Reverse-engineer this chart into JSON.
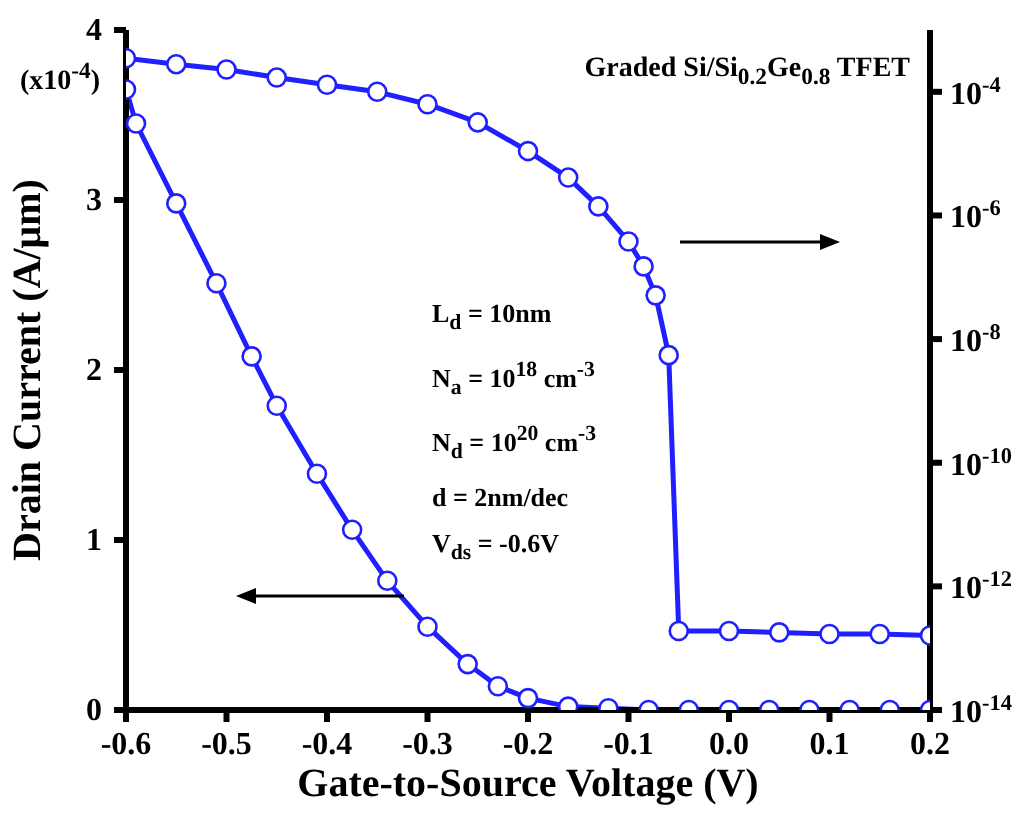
{
  "chart_data": {
    "type": "line",
    "title": "Graded Si/Si$_{0.2}$Ge$_{0.8}$ TFET",
    "xlabel": "Gate-to-Source Voltage (V)",
    "ylabel": "Drain Current (A/μm)",
    "annotations": [
      "(x10$^{-4}$)",
      "L$_{d}$ = 10nm",
      "N$_{a}$ = 10$^{18}$ cm$^{-3}$",
      "N$_{d}$ = 10$^{20}$ cm$^{-3}$",
      "d = 2nm/dec",
      "V$_{ds}$ = -0.6V"
    ],
    "series": [
      {
        "color": "#1f1fff",
        "axis": "y",
        "x": [
          -0.6,
          -0.59,
          -0.55,
          -0.51,
          -0.475,
          -0.45,
          -0.41,
          -0.375,
          -0.34,
          -0.3,
          -0.26,
          -0.23,
          -0.2,
          -0.16,
          -0.12,
          -0.08,
          -0.04,
          0,
          0.04,
          0.08,
          0.12,
          0.16,
          0.2
        ],
        "values": [
          3.65,
          3.45,
          2.98,
          2.51,
          2.08,
          1.79,
          1.39,
          1.06,
          0.76,
          0.49,
          0.27,
          0.14,
          0.07,
          0.02,
          0.01,
          0,
          0,
          0,
          0,
          0,
          0,
          0,
          0
        ]
      },
      {
        "color": "#1f1fff",
        "axis": "y2",
        "x": [
          -0.6,
          -0.55,
          -0.5,
          -0.45,
          -0.4,
          -0.35,
          -0.3,
          -0.25,
          -0.2,
          -0.16,
          -0.13,
          -0.1,
          -0.085,
          -0.073,
          -0.06,
          -0.05,
          0,
          0.05,
          0.1,
          0.15,
          0.2
        ],
        "values": [
          0.00035,
          0.00028,
          0.00023,
          0.00017,
          0.00013,
          0.0001,
          6.3e-05,
          3.2e-05,
          1.1e-05,
          4.1e-06,
          1.4e-06,
          3.8e-07,
          1.5e-07,
          5.1e-08,
          5.5e-09,
          1.9e-13,
          1.9e-13,
          1.8e-13,
          1.7e-13,
          1.7e-13,
          1.6e-13
        ]
      }
    ],
    "xlim": [
      -0.6,
      0.2
    ],
    "xticks": [
      -0.6,
      -0.5,
      -0.4,
      -0.3,
      -0.2,
      -0.1,
      {
        "value": 0,
        "label": "0.0"
      },
      0.1,
      0.2
    ],
    "ylim": [
      0,
      4
    ],
    "yticks": [
      0,
      1,
      2,
      3,
      4
    ],
    "y2lim": [
      1e-14,
      0.001
    ],
    "y2ticks": [
      {
        "value": 1e-14,
        "label": "10$^{-14}$"
      },
      {
        "value": 1e-12,
        "label": "10$^{-12}$"
      },
      {
        "value": 1e-10,
        "label": "10$^{-10}$"
      },
      {
        "value": 1e-08,
        "label": "10$^{-8}$"
      },
      {
        "value": 1e-06,
        "label": "10$^{-6}$"
      },
      {
        "value": 0.0001,
        "label": "10$^{-4}$"
      }
    ],
    "log": "y2",
    "marker": "circle",
    "line_style": "solid",
    "grid": false,
    "legend": false
  }
}
